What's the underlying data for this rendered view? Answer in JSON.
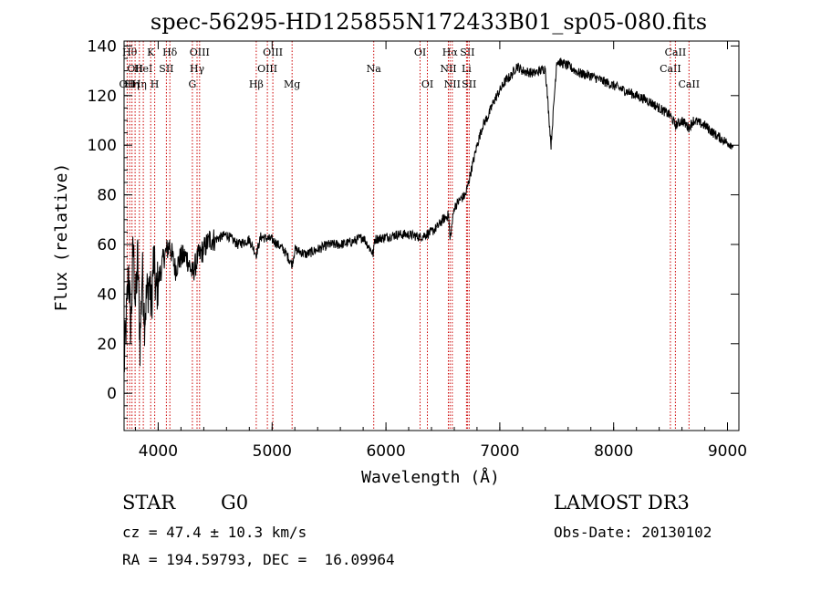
{
  "chart_data": {
    "type": "line",
    "title": "spec-56295-HD125855N172433B01_sp05-080.fits",
    "xlabel": "Wavelength (Å)",
    "ylabel": "Flux (relative)",
    "xlim": [
      3700,
      9100
    ],
    "ylim": [
      -15,
      142
    ],
    "xticks": [
      4000,
      5000,
      6000,
      7000,
      8000,
      9000
    ],
    "yticks": [
      0,
      20,
      40,
      60,
      80,
      100,
      120,
      140
    ],
    "grid": false,
    "line_color": "#000000",
    "marker_color": "#cc0000",
    "series": [
      {
        "name": "flux",
        "x": [
          3700,
          3720,
          3740,
          3760,
          3780,
          3800,
          3820,
          3840,
          3860,
          3880,
          3900,
          3920,
          3940,
          3960,
          3980,
          4000,
          4050,
          4100,
          4150,
          4200,
          4250,
          4300,
          4350,
          4400,
          4450,
          4500,
          4600,
          4700,
          4800,
          4861,
          4900,
          5000,
          5100,
          5176,
          5200,
          5300,
          5400,
          5500,
          5600,
          5700,
          5800,
          5890,
          5900,
          6000,
          6100,
          6200,
          6300,
          6400,
          6450,
          6500,
          6550,
          6563,
          6600,
          6650,
          6700,
          6750,
          6800,
          6850,
          6900,
          6950,
          7000,
          7050,
          7100,
          7150,
          7200,
          7300,
          7400,
          7450,
          7500,
          7600,
          7700,
          7800,
          7900,
          8000,
          8100,
          8200,
          8300,
          8400,
          8498,
          8542,
          8600,
          8662,
          8700,
          8800,
          8900,
          9000,
          9050
        ],
        "y": [
          10,
          30,
          50,
          25,
          60,
          35,
          55,
          20,
          50,
          30,
          40,
          45,
          35,
          55,
          40,
          45,
          55,
          60,
          50,
          55,
          55,
          48,
          55,
          58,
          62,
          62,
          64,
          60,
          62,
          56,
          63,
          62,
          58,
          52,
          58,
          56,
          58,
          60,
          60,
          61,
          63,
          56,
          62,
          63,
          64,
          64,
          63,
          65,
          67,
          70,
          72,
          62,
          75,
          78,
          80,
          90,
          100,
          108,
          112,
          118,
          122,
          126,
          128,
          132,
          130,
          129,
          131,
          100,
          134,
          132,
          129,
          128,
          126,
          124,
          122,
          120,
          118,
          115,
          112,
          108,
          110,
          107,
          110,
          108,
          104,
          101,
          100
        ]
      }
    ],
    "line_markers": [
      {
        "wl": 3727,
        "labels": [
          {
            "text": "OII",
            "row": 2
          }
        ]
      },
      {
        "wl": 3750,
        "labels": [
          {
            "text": "Hθ",
            "row": 0
          }
        ]
      },
      {
        "wl": 3770,
        "labels": [
          {
            "text": "Hη",
            "row": 2
          }
        ]
      },
      {
        "wl": 3797,
        "labels": [
          {
            "text": "OII",
            "row": 1
          }
        ]
      },
      {
        "wl": 3835,
        "labels": [
          {
            "text": "Hη",
            "row": 2
          }
        ]
      },
      {
        "wl": 3869,
        "labels": [
          {
            "text": "HeI",
            "row": 1
          }
        ]
      },
      {
        "wl": 3934,
        "labels": [
          {
            "text": "K",
            "row": 0
          }
        ]
      },
      {
        "wl": 3969,
        "labels": [
          {
            "text": "H",
            "row": 2
          }
        ]
      },
      {
        "wl": 4072,
        "labels": [
          {
            "text": "SII",
            "row": 1
          }
        ]
      },
      {
        "wl": 4102,
        "labels": [
          {
            "text": "Hδ",
            "row": 0
          }
        ]
      },
      {
        "wl": 4300,
        "labels": [
          {
            "text": "G",
            "row": 2
          }
        ]
      },
      {
        "wl": 4341,
        "labels": [
          {
            "text": "Hγ",
            "row": 1
          }
        ]
      },
      {
        "wl": 4363,
        "labels": [
          {
            "text": "OIII",
            "row": 0
          }
        ]
      },
      {
        "wl": 4861,
        "labels": [
          {
            "text": "Hβ",
            "row": 2
          }
        ]
      },
      {
        "wl": 4959,
        "labels": [
          {
            "text": "OIII",
            "row": 1
          }
        ]
      },
      {
        "wl": 5007,
        "labels": [
          {
            "text": "OIII",
            "row": 0
          }
        ]
      },
      {
        "wl": 5176,
        "labels": [
          {
            "text": "Mg",
            "row": 2
          }
        ]
      },
      {
        "wl": 5893,
        "labels": [
          {
            "text": "Na",
            "row": 1
          }
        ]
      },
      {
        "wl": 6300,
        "labels": [
          {
            "text": "OI",
            "row": 0
          }
        ]
      },
      {
        "wl": 6364,
        "labels": [
          {
            "text": "OI",
            "row": 2
          }
        ]
      },
      {
        "wl": 6548,
        "labels": [
          {
            "text": "NII",
            "row": 1
          }
        ]
      },
      {
        "wl": 6563,
        "labels": [
          {
            "text": "Hα",
            "row": 0
          }
        ]
      },
      {
        "wl": 6583,
        "labels": [
          {
            "text": "NII",
            "row": 2
          }
        ]
      },
      {
        "wl": 6708,
        "labels": [
          {
            "text": "Li",
            "row": 1
          }
        ]
      },
      {
        "wl": 6716,
        "labels": [
          {
            "text": "SII",
            "row": 0
          }
        ]
      },
      {
        "wl": 6731,
        "labels": [
          {
            "text": "SII",
            "row": 2
          }
        ]
      },
      {
        "wl": 8498,
        "labels": [
          {
            "text": "CaII",
            "row": 1
          }
        ]
      },
      {
        "wl": 8542,
        "labels": [
          {
            "text": "CaII",
            "row": 0
          }
        ]
      },
      {
        "wl": 8662,
        "labels": [
          {
            "text": "CaII",
            "row": 2
          }
        ]
      }
    ]
  },
  "info": {
    "object_class": "STAR",
    "subclass": "G0",
    "survey": "LAMOST DR3",
    "cz": "cz = 47.4 ± 10.3 km/s",
    "obs_date": "Obs-Date: 20130102",
    "coords": "RA = 194.59793, DEC =  16.09964"
  }
}
